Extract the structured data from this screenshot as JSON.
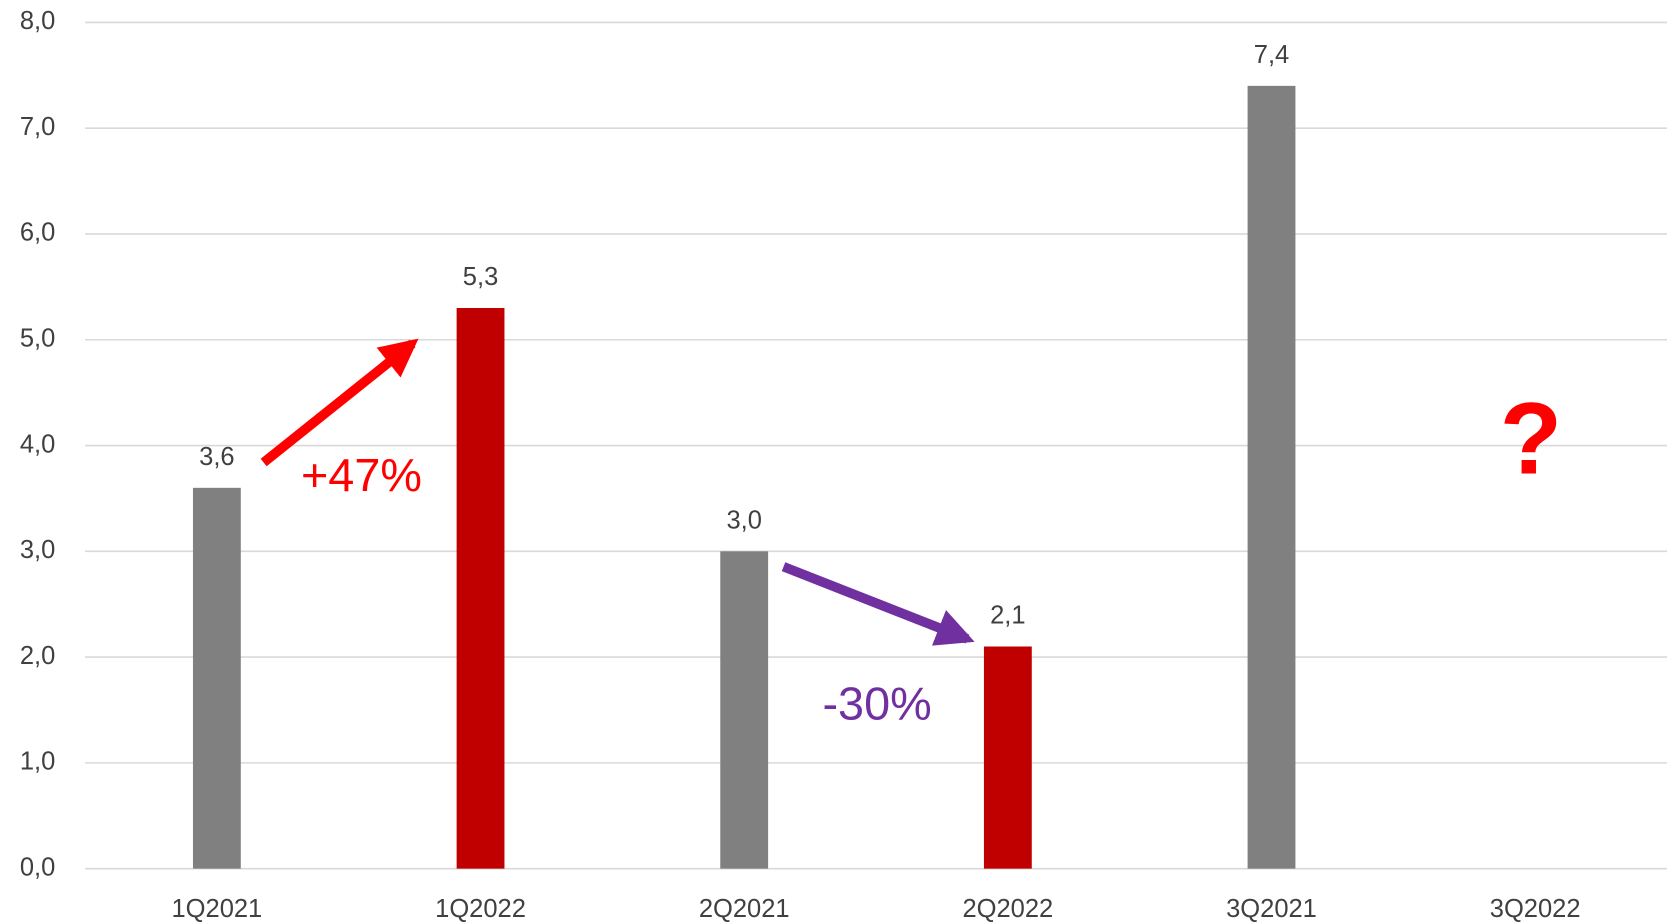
{
  "chart_data": {
    "type": "bar",
    "categories": [
      "1Q2021",
      "1Q2022",
      "2Q2021",
      "2Q2022",
      "3Q2021",
      "3Q2022"
    ],
    "values": [
      3.6,
      5.3,
      3.0,
      2.1,
      7.4,
      null
    ],
    "value_labels": [
      "3,6",
      "5,3",
      "3,0",
      "2,1",
      "7,4",
      null
    ],
    "colors": [
      "#808080",
      "#c00000",
      "#808080",
      "#c00000",
      "#808080",
      "#c00000"
    ],
    "ylim": [
      0,
      8
    ],
    "yticks": [
      {
        "value": 0,
        "label": "0,0"
      },
      {
        "value": 1,
        "label": "1,0"
      },
      {
        "value": 2,
        "label": "2,0"
      },
      {
        "value": 3,
        "label": "3,0"
      },
      {
        "value": 4,
        "label": "4,0"
      },
      {
        "value": 5,
        "label": "5,0"
      },
      {
        "value": 6,
        "label": "6,0"
      },
      {
        "value": 7,
        "label": "7,0"
      },
      {
        "value": 8,
        "label": "8,0"
      }
    ],
    "grid": true,
    "annotations": [
      "+47%",
      "-30%",
      "?"
    ]
  }
}
